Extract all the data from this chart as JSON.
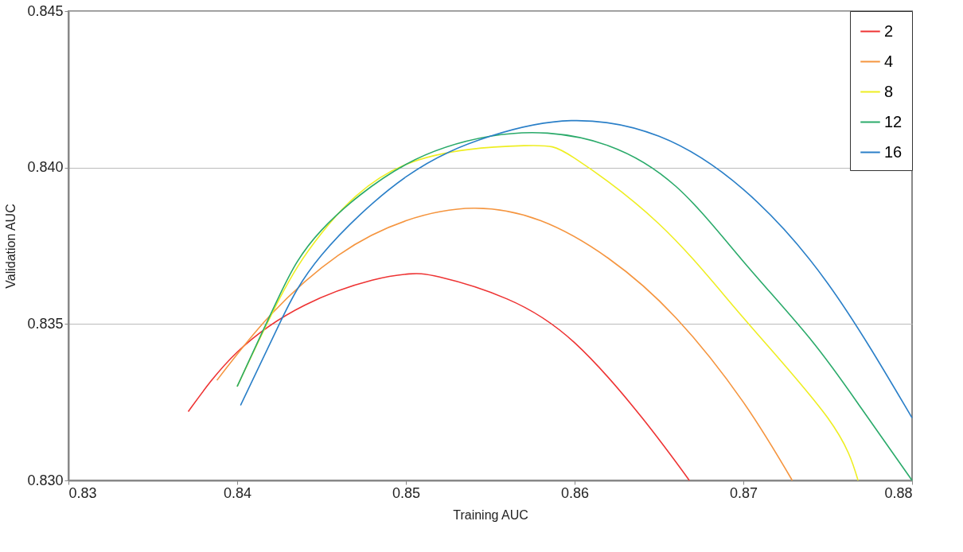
{
  "chart_data": {
    "type": "line",
    "xlabel": "Training AUC",
    "ylabel": "Validation AUC",
    "xlim": [
      0.83,
      0.88
    ],
    "xticks": [
      0.83,
      0.84,
      0.85,
      0.86,
      0.87,
      0.88
    ],
    "ylim": [
      0.83,
      0.845
    ],
    "yticks": [
      {
        "value": 0.83,
        "label": "0.830"
      },
      {
        "value": 0.835,
        "label": "0.835"
      },
      {
        "value": 0.84,
        "label": "0.840"
      },
      {
        "value": 0.845,
        "label": "0.845"
      }
    ],
    "grid": "y",
    "legend": "top right",
    "marker": "none",
    "line_style": "solid",
    "series": [
      {
        "name": "2",
        "color": "#ee3333",
        "x": [
          0.8371,
          0.84,
          0.844,
          0.848,
          0.8502,
          0.852,
          0.856,
          0.86,
          0.864,
          0.8668
        ],
        "values": [
          0.8322,
          0.8341,
          0.8356,
          0.8364,
          0.8366,
          0.8365,
          0.8358,
          0.8344,
          0.832,
          0.83
        ]
      },
      {
        "name": "4",
        "color": "#f5953f",
        "x": [
          0.8388,
          0.842,
          0.846,
          0.85,
          0.854,
          0.858,
          0.862,
          0.866,
          0.87,
          0.8729
        ],
        "values": [
          0.8332,
          0.8353,
          0.8372,
          0.8383,
          0.8387,
          0.8383,
          0.8371,
          0.8352,
          0.8325,
          0.83
        ]
      },
      {
        "name": "8",
        "color": "#eeee22",
        "x": [
          0.84,
          0.8425,
          0.845,
          0.85,
          0.857,
          0.86,
          0.865,
          0.87,
          0.875,
          0.8768
        ],
        "values": [
          0.833,
          0.8358,
          0.8379,
          0.8401,
          0.8407,
          0.8403,
          0.8382,
          0.8352,
          0.832,
          0.83
        ]
      },
      {
        "name": "12",
        "color": "#2aaa6a",
        "x": [
          0.84,
          0.8425,
          0.845,
          0.85,
          0.855,
          0.8584,
          0.862,
          0.866,
          0.87,
          0.874,
          0.877,
          0.88
        ],
        "values": [
          0.833,
          0.8359,
          0.838,
          0.8401,
          0.841,
          0.8411,
          0.8407,
          0.8394,
          0.837,
          0.8345,
          0.8323,
          0.83
        ]
      },
      {
        "name": "16",
        "color": "#2a7fc8",
        "x": [
          0.8402,
          0.8425,
          0.845,
          0.85,
          0.855,
          0.8598,
          0.865,
          0.87,
          0.875,
          0.88
        ],
        "values": [
          0.8324,
          0.835,
          0.8372,
          0.8397,
          0.841,
          0.8415,
          0.841,
          0.8393,
          0.8363,
          0.832
        ]
      }
    ]
  }
}
